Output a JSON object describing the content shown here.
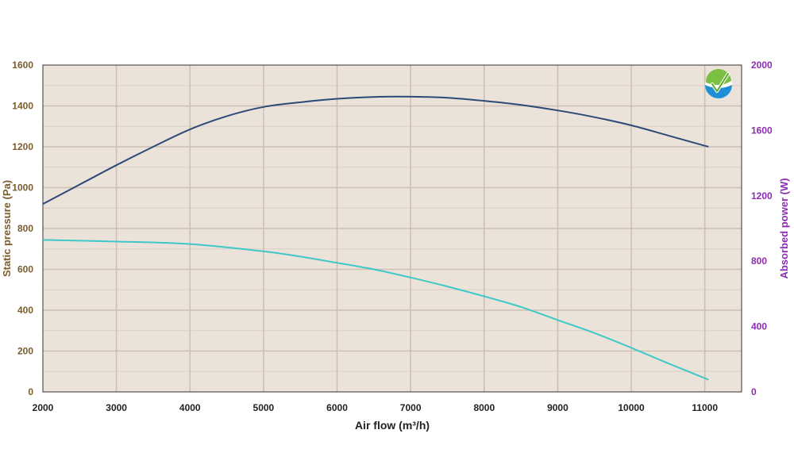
{
  "chart_data": {
    "type": "line",
    "xlabel": "Air flow (m³/h)",
    "ylabel_left": "Static pressure (Pa)",
    "ylabel_right": "Absorbed power (W)",
    "xlim": [
      2000,
      11500
    ],
    "ylim_left": [
      0,
      1600
    ],
    "ylim_right": [
      0,
      2000
    ],
    "x_ticks": [
      2000,
      3000,
      4000,
      5000,
      6000,
      7000,
      8000,
      9000,
      10000,
      11000
    ],
    "y_left_ticks": [
      0,
      200,
      400,
      600,
      800,
      1000,
      1200,
      1400,
      1600
    ],
    "y_right_ticks": [
      0,
      400,
      800,
      1200,
      1600,
      2000
    ],
    "grid": true,
    "series": [
      {
        "axis": "left",
        "color": "#2b4a78",
        "x": [
          2000,
          2500,
          3000,
          3500,
          4000,
          4500,
          5000,
          5500,
          6000,
          6500,
          7000,
          7500,
          8000,
          8500,
          9000,
          9500,
          10000,
          10500,
          11050
        ],
        "values": [
          920,
          1015,
          1110,
          1200,
          1285,
          1350,
          1395,
          1418,
          1435,
          1444,
          1445,
          1440,
          1425,
          1405,
          1378,
          1345,
          1305,
          1255,
          1200
        ]
      },
      {
        "axis": "right",
        "color": "#3ec8c8",
        "x": [
          2000,
          3000,
          4000,
          5000,
          5500,
          6000,
          6500,
          7000,
          7500,
          8000,
          8500,
          9000,
          9500,
          10000,
          10500,
          11050
        ],
        "values": [
          930,
          920,
          905,
          860,
          828,
          790,
          750,
          700,
          645,
          585,
          520,
          440,
          360,
          270,
          175,
          75
        ]
      }
    ]
  },
  "logo": {
    "icon": "check-globe-icon",
    "color_green": "#7bc043",
    "color_blue": "#1e8fd6"
  }
}
